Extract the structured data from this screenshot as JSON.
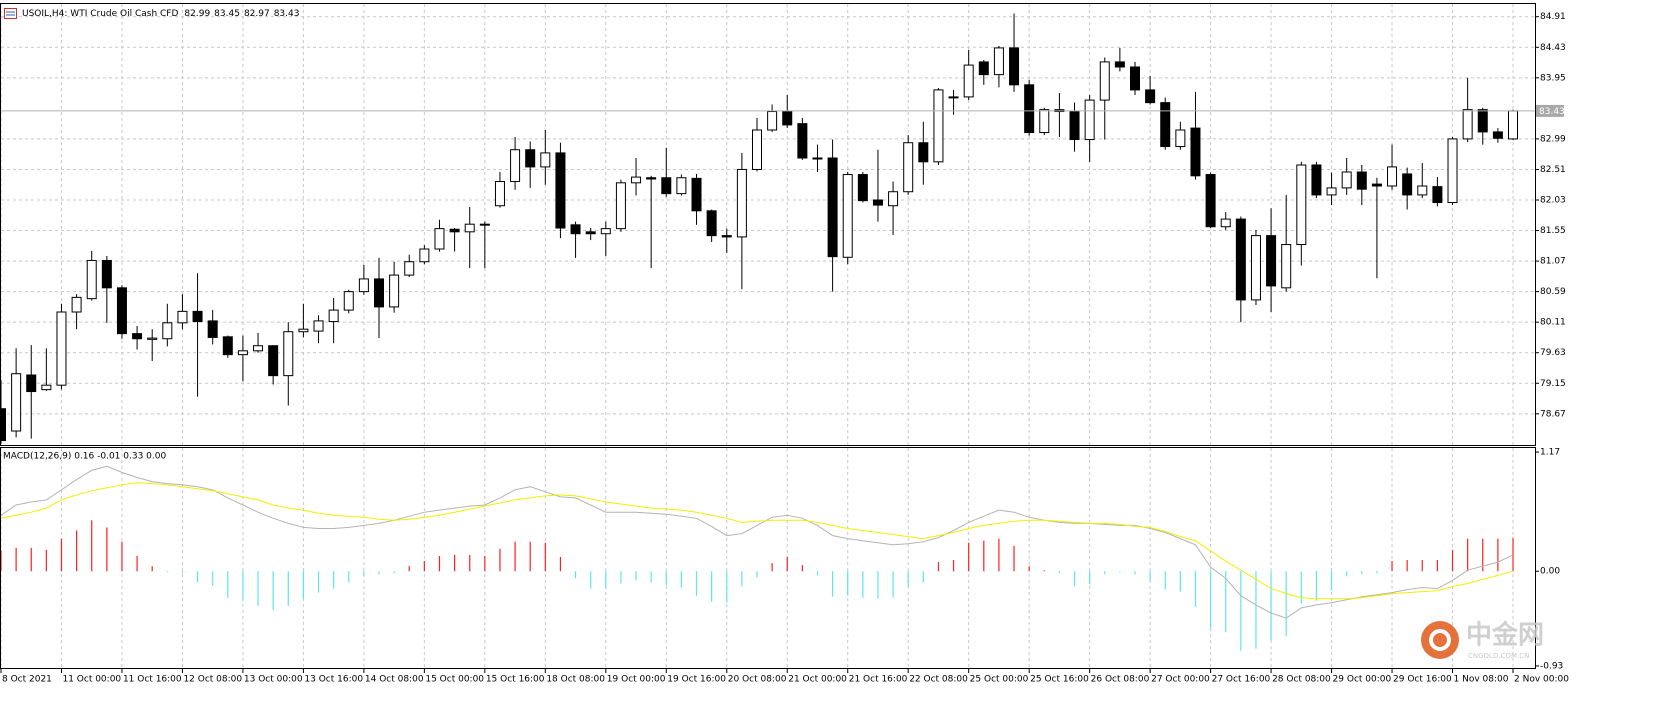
{
  "chart_data": [
    {
      "type": "candlestick",
      "title": "USOIL,H4: WTI Crude Oil Cash CFD",
      "categories": [
        "8 Oct 2021",
        null,
        null,
        null,
        "11 Oct 00:00",
        null,
        null,
        null,
        "11 Oct 16:00",
        null,
        null,
        null,
        "12 Oct 08:00",
        null,
        null,
        null,
        "13 Oct 00:00",
        null,
        null,
        null,
        "13 Oct 16:00",
        null,
        null,
        null,
        "14 Oct 08:00",
        null,
        null,
        null,
        "15 Oct 00:00",
        null,
        null,
        null,
        "15 Oct 16:00",
        null,
        null,
        null,
        "18 Oct 08:00",
        null,
        null,
        null,
        "19 Oct 00:00",
        null,
        null,
        null,
        "19 Oct 16:00",
        null,
        null,
        null,
        "20 Oct 08:00",
        null,
        null,
        null,
        "21 Oct 00:00",
        null,
        null,
        null,
        "21 Oct 16:00",
        null,
        null,
        null,
        "22 Oct 08:00",
        null,
        null,
        null,
        "25 Oct 00:00",
        null,
        null,
        null,
        "25 Oct 16:00",
        null,
        null,
        null,
        "26 Oct 08:00",
        null,
        null,
        null,
        "27 Oct 00:00",
        null,
        null,
        null,
        "27 Oct 16:00",
        null,
        null,
        null,
        "28 Oct 08:00",
        null,
        null,
        null,
        "29 Oct 00:00",
        null,
        null,
        null,
        "29 Oct 16:00",
        null,
        null,
        null,
        "1 Nov 08:00",
        null,
        null,
        null,
        "2 Nov 00:00"
      ],
      "open": [
        78.75,
        78.4,
        79.28,
        79.05,
        79.12,
        80.27,
        80.48,
        81.08,
        80.65,
        79.93,
        79.84,
        79.85,
        80.1,
        80.28,
        80.13,
        79.88,
        79.6,
        79.66,
        79.74,
        79.27,
        79.96,
        79.97,
        80.12,
        80.3,
        80.59,
        80.79,
        80.35,
        80.85,
        81.06,
        81.26,
        81.57,
        81.53,
        81.65,
        81.94,
        82.32,
        82.82,
        82.55,
        82.77,
        81.64,
        81.53,
        81.5,
        81.58,
        82.3,
        82.38,
        82.38,
        82.13,
        82.37,
        81.86,
        81.47,
        81.45,
        82.51,
        83.13,
        83.42,
        83.23,
        82.69,
        82.69,
        81.13,
        82.43,
        82.03,
        81.94,
        82.16,
        82.93,
        82.63,
        83.65,
        83.65,
        84.2,
        84.0,
        84.42,
        83.84,
        83.09,
        83.45,
        83.42,
        82.98,
        83.6,
        84.2,
        84.12,
        83.76,
        83.56,
        82.87,
        83.16,
        82.43,
        81.61,
        81.73,
        80.46,
        81.47,
        80.65,
        81.33,
        82.58,
        82.11,
        82.22,
        82.47,
        82.28,
        82.25,
        82.44,
        82.11,
        82.24,
        81.99,
        82.99,
        83.45,
        83.1,
        82.99
      ],
      "high": [
        79.2,
        79.7,
        79.75,
        79.7,
        80.4,
        80.55,
        81.23,
        81.15,
        80.69,
        80.05,
        80.0,
        80.4,
        80.55,
        80.88,
        80.3,
        79.9,
        79.9,
        79.94,
        79.75,
        80.11,
        80.4,
        80.22,
        80.49,
        80.62,
        81.01,
        81.12,
        81.06,
        81.17,
        81.32,
        81.72,
        81.59,
        81.92,
        81.69,
        82.47,
        83.02,
        82.95,
        83.13,
        82.93,
        81.69,
        81.59,
        81.69,
        82.35,
        82.69,
        82.41,
        82.85,
        82.43,
        82.44,
        81.88,
        81.58,
        82.77,
        83.32,
        83.53,
        83.68,
        83.32,
        82.9,
        82.98,
        82.47,
        82.47,
        82.82,
        82.32,
        83.05,
        83.26,
        83.79,
        83.76,
        84.39,
        84.23,
        84.45,
        84.96,
        83.92,
        83.48,
        83.71,
        83.56,
        83.68,
        84.27,
        84.42,
        84.2,
        83.98,
        83.64,
        83.26,
        83.73,
        82.46,
        81.84,
        81.77,
        81.56,
        81.9,
        82.11,
        82.63,
        82.63,
        82.46,
        82.69,
        82.58,
        82.38,
        82.9,
        82.54,
        82.61,
        82.39,
        83.02,
        83.95,
        83.48,
        83.16,
        83.45
      ],
      "low": [
        78.2,
        78.3,
        78.28,
        79.03,
        79.05,
        80.0,
        80.45,
        80.1,
        79.85,
        79.68,
        79.5,
        79.73,
        80.0,
        78.94,
        79.76,
        79.55,
        79.18,
        79.63,
        79.13,
        78.8,
        79.87,
        79.78,
        79.78,
        80.25,
        80.54,
        79.86,
        80.26,
        80.82,
        81.02,
        81.22,
        81.22,
        80.96,
        80.96,
        81.91,
        82.19,
        82.22,
        82.27,
        81.43,
        81.12,
        81.4,
        81.15,
        81.53,
        82.1,
        80.96,
        82.08,
        82.1,
        81.64,
        81.37,
        81.2,
        80.63,
        82.48,
        83.1,
        83.16,
        82.66,
        82.47,
        80.59,
        81.02,
        81.99,
        81.69,
        81.48,
        82.11,
        82.27,
        82.58,
        83.37,
        83.6,
        83.84,
        83.8,
        83.73,
        83.04,
        83.05,
        83.02,
        82.79,
        82.63,
        82.98,
        84.05,
        83.68,
        83.53,
        82.82,
        82.82,
        82.35,
        81.59,
        81.56,
        80.11,
        80.38,
        80.27,
        80.59,
        81.0,
        82.06,
        81.95,
        82.11,
        81.95,
        80.8,
        82.19,
        81.88,
        82.06,
        81.93,
        81.95,
        82.94,
        82.9,
        82.93,
        82.97
      ],
      "close": [
        78.25,
        79.3,
        79.02,
        79.12,
        80.27,
        80.5,
        81.08,
        80.65,
        79.93,
        79.85,
        79.86,
        80.1,
        80.28,
        80.12,
        79.87,
        79.6,
        79.66,
        79.74,
        79.27,
        79.96,
        80.0,
        80.13,
        80.3,
        80.59,
        80.79,
        80.35,
        80.85,
        81.06,
        81.26,
        81.58,
        81.53,
        81.65,
        81.64,
        82.32,
        82.82,
        82.55,
        82.77,
        81.59,
        81.5,
        81.5,
        81.58,
        82.3,
        82.39,
        82.36,
        82.13,
        82.38,
        81.86,
        81.47,
        81.45,
        82.51,
        83.13,
        83.42,
        83.21,
        82.69,
        82.68,
        81.14,
        82.43,
        82.02,
        81.95,
        82.16,
        82.93,
        82.63,
        83.76,
        83.64,
        84.15,
        84.0,
        84.42,
        83.84,
        83.09,
        83.45,
        83.42,
        82.98,
        83.6,
        84.2,
        84.12,
        83.76,
        83.56,
        82.87,
        83.13,
        82.41,
        81.61,
        81.73,
        80.46,
        81.47,
        80.68,
        81.33,
        82.58,
        82.11,
        82.22,
        82.47,
        82.2,
        82.25,
        82.55,
        82.11,
        82.25,
        81.99,
        82.99,
        83.45,
        83.1,
        83.0,
        83.43
      ],
      "up_color": "#ffffff",
      "down_color": "#000000",
      "ylim": [
        78.18,
        85.11
      ],
      "yticks": [
        84.91,
        84.43,
        83.95,
        82.99,
        82.51,
        82.03,
        81.55,
        81.07,
        80.59,
        80.11,
        79.63,
        79.15,
        78.67
      ],
      "grid": true
    },
    {
      "type": "macd",
      "title": "MACD(12,26,9) 0.16 -0.01 0.33 0.00",
      "series": [
        {
          "kind": "bar",
          "color": "#ff2020",
          "negative_color": "#5ce6f0",
          "values": [
            0.2,
            0.23,
            0.23,
            0.21,
            0.32,
            0.4,
            0.5,
            0.43,
            0.29,
            0.15,
            0.05,
            -0.01,
            -0.02,
            -0.11,
            -0.14,
            -0.26,
            -0.29,
            -0.34,
            -0.38,
            -0.34,
            -0.27,
            -0.21,
            -0.17,
            -0.11,
            -0.04,
            -0.03,
            -0.02,
            0.05,
            0.1,
            0.15,
            0.16,
            0.16,
            0.15,
            0.22,
            0.29,
            0.29,
            0.28,
            0.14,
            -0.07,
            -0.17,
            -0.17,
            -0.12,
            -0.09,
            -0.11,
            -0.14,
            -0.16,
            -0.24,
            -0.3,
            -0.31,
            -0.15,
            -0.06,
            0.08,
            0.14,
            0.06,
            -0.04,
            -0.25,
            -0.24,
            -0.26,
            -0.27,
            -0.26,
            -0.15,
            -0.11,
            0.09,
            0.11,
            0.28,
            0.3,
            0.32,
            0.25,
            0.05,
            0.01,
            -0.02,
            -0.15,
            -0.13,
            -0.03,
            -0.01,
            -0.03,
            -0.09,
            -0.18,
            -0.2,
            -0.35,
            -0.56,
            -0.6,
            -0.78,
            -0.76,
            -0.68,
            -0.64,
            -0.32,
            -0.29,
            -0.19,
            -0.05,
            -0.03,
            -0.02,
            0.1,
            0.11,
            0.11,
            0.11,
            0.21,
            0.32,
            0.32,
            0.32,
            0.33
          ]
        },
        {
          "kind": "line",
          "color": "#b4b4b4",
          "values": [
            0.55,
            0.65,
            0.68,
            0.7,
            0.8,
            0.9,
            0.99,
            1.03,
            0.97,
            0.92,
            0.88,
            0.86,
            0.85,
            0.83,
            0.8,
            0.72,
            0.65,
            0.58,
            0.52,
            0.47,
            0.43,
            0.42,
            0.42,
            0.43,
            0.45,
            0.47,
            0.5,
            0.54,
            0.58,
            0.6,
            0.62,
            0.64,
            0.65,
            0.72,
            0.8,
            0.83,
            0.78,
            0.73,
            0.72,
            0.65,
            0.58,
            0.58,
            0.58,
            0.57,
            0.56,
            0.54,
            0.52,
            0.44,
            0.35,
            0.37,
            0.45,
            0.53,
            0.55,
            0.52,
            0.45,
            0.35,
            0.32,
            0.3,
            0.28,
            0.26,
            0.27,
            0.29,
            0.33,
            0.4,
            0.48,
            0.54,
            0.6,
            0.58,
            0.53,
            0.5,
            0.48,
            0.47,
            0.47,
            0.46,
            0.45,
            0.45,
            0.42,
            0.38,
            0.32,
            0.26,
            0.04,
            -0.07,
            -0.24,
            -0.33,
            -0.41,
            -0.46,
            -0.36,
            -0.33,
            -0.31,
            -0.28,
            -0.25,
            -0.23,
            -0.21,
            -0.18,
            -0.16,
            -0.17,
            -0.09,
            0.01,
            0.05,
            0.09,
            0.16
          ]
        },
        {
          "kind": "line",
          "color": "#f0f000",
          "values": [
            0.52,
            0.55,
            0.58,
            0.62,
            0.7,
            0.75,
            0.79,
            0.82,
            0.85,
            0.87,
            0.86,
            0.85,
            0.83,
            0.81,
            0.79,
            0.76,
            0.73,
            0.7,
            0.65,
            0.62,
            0.6,
            0.57,
            0.55,
            0.54,
            0.53,
            0.51,
            0.5,
            0.51,
            0.53,
            0.55,
            0.58,
            0.61,
            0.64,
            0.67,
            0.7,
            0.72,
            0.74,
            0.75,
            0.74,
            0.71,
            0.68,
            0.66,
            0.64,
            0.62,
            0.61,
            0.6,
            0.58,
            0.55,
            0.52,
            0.48,
            0.49,
            0.5,
            0.5,
            0.5,
            0.48,
            0.45,
            0.42,
            0.4,
            0.38,
            0.36,
            0.34,
            0.32,
            0.35,
            0.38,
            0.42,
            0.45,
            0.47,
            0.49,
            0.5,
            0.5,
            0.49,
            0.48,
            0.47,
            0.47,
            0.46,
            0.44,
            0.43,
            0.39,
            0.34,
            0.3,
            0.2,
            0.1,
            0.01,
            -0.08,
            -0.17,
            -0.22,
            -0.26,
            -0.27,
            -0.27,
            -0.27,
            -0.26,
            -0.24,
            -0.22,
            -0.21,
            -0.2,
            -0.19,
            -0.15,
            -0.12,
            -0.08,
            -0.04,
            0.0
          ]
        }
      ],
      "ylim": [
        -0.95,
        1.21
      ],
      "yticks": [
        1.17,
        {
          "value": 0,
          "label": "0.00"
        },
        -0.93
      ]
    }
  ],
  "watermark": {
    "name": "中金网",
    "domain": "CNGOLD.COM.CN"
  }
}
